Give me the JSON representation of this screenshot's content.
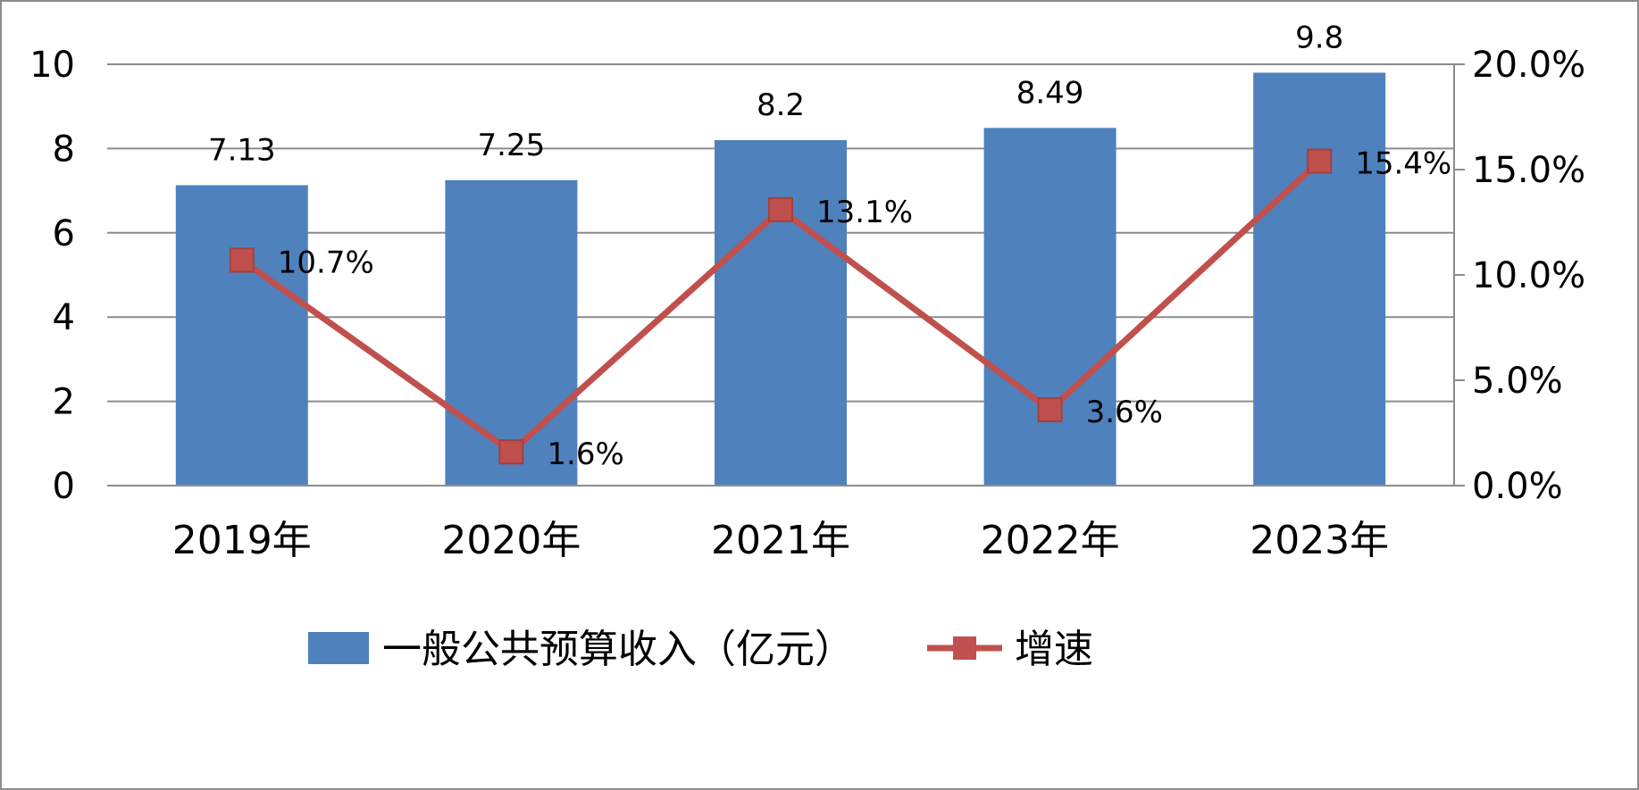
{
  "chart_data": {
    "type": "bar",
    "categories": [
      "2019年",
      "2020年",
      "2021年",
      "2022年",
      "2023年"
    ],
    "series": [
      {
        "name": "一般公共预算收入（亿元）",
        "type": "bar",
        "axis": "left",
        "values": [
          7.13,
          7.25,
          8.2,
          8.49,
          9.8
        ],
        "labels": [
          "7.13",
          "7.25",
          "8.2",
          "8.49",
          "9.8"
        ],
        "color": "#4F81BD"
      },
      {
        "name": "增速",
        "type": "line",
        "axis": "right",
        "values": [
          10.7,
          1.6,
          13.1,
          3.6,
          15.4
        ],
        "labels": [
          "10.7%",
          "1.6%",
          "13.1%",
          "3.6%",
          "15.4%"
        ],
        "color": "#C0504D"
      }
    ],
    "y_left": {
      "ylim": [
        0,
        10
      ],
      "ticks": [
        "0",
        "2",
        "4",
        "6",
        "8",
        "10"
      ]
    },
    "y_right": {
      "ylim": [
        0,
        20
      ],
      "ticks": [
        "0.0%",
        "5.0%",
        "10.0%",
        "15.0%",
        "20.0%"
      ]
    },
    "grid": true,
    "legend_position": "bottom"
  }
}
